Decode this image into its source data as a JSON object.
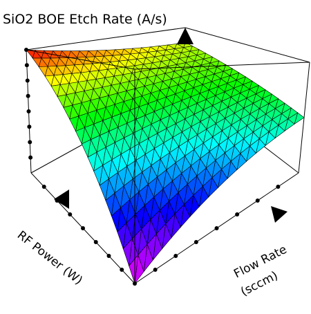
{
  "chart_data": {
    "type": "surface3d",
    "title": "SiO2 BOE Etch Rate (A/s)",
    "x_axis": {
      "label_line1": "Flow Rate",
      "label_line2": "(sccm)",
      "range": [
        0,
        1
      ]
    },
    "y_axis": {
      "label": "RF Power (W)",
      "range": [
        0,
        1
      ]
    },
    "z_axis": {
      "label": "",
      "range": [
        0,
        1
      ]
    },
    "tick_count": 7,
    "surface": {
      "corners_normalized": [
        {
          "flow": 0,
          "power": 0,
          "rate": 0.0
        },
        {
          "flow": 1,
          "power": 0,
          "rate": 0.5
        },
        {
          "flow": 0,
          "power": 1,
          "rate": 1.0
        },
        {
          "flow": 1,
          "power": 1,
          "rate": 0.75
        }
      ],
      "colormap": "rainbow (magenta low → red high)",
      "mesh_color": "#000000"
    },
    "box_edge_color": "#000000"
  }
}
